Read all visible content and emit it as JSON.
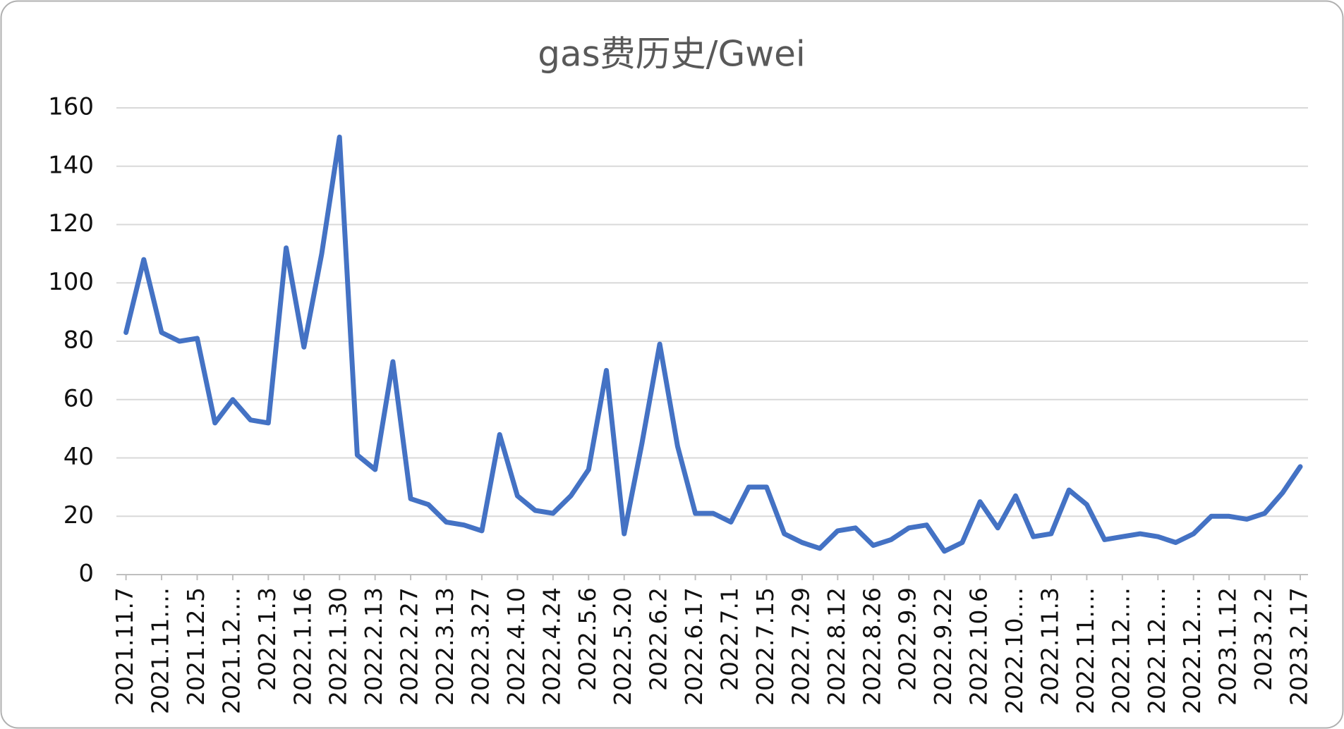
{
  "chart_data": {
    "type": "line",
    "title": "gas费历史/Gwei",
    "categories": [
      "2021.11.7",
      null,
      "2021.11.…",
      null,
      "2021.12.5",
      null,
      "2021.12.…",
      null,
      "2022.1.3",
      null,
      "2022.1.16",
      null,
      "2022.1.30",
      null,
      "2022.2.13",
      null,
      "2022.2.27",
      null,
      "2022.3.13",
      null,
      "2022.3.27",
      null,
      "2022.4.10",
      null,
      "2022.4.24",
      null,
      "2022.5.6",
      null,
      "2022.5.20",
      null,
      "2022.6.2",
      null,
      "2022.6.17",
      null,
      "2022.7.1",
      null,
      "2022.7.15",
      null,
      "2022.7.29",
      null,
      "2022.8.12",
      null,
      "2022.8.26",
      null,
      "2022.9.9",
      null,
      "2022.9.22",
      null,
      "2022.10.6",
      null,
      "2022.10.…",
      null,
      "2022.11.3",
      null,
      "2022.11.…",
      null,
      "2022.12.…",
      null,
      "2022.12.…",
      null,
      "2022.12.…",
      null,
      "2023.1.12",
      null,
      "2023.2.2",
      null,
      "2023.2.17"
    ],
    "series": [
      {
        "name": "gas",
        "color": "#4472c4",
        "values": [
          83,
          108,
          83,
          80,
          81,
          52,
          60,
          53,
          52,
          112,
          78,
          110,
          150,
          41,
          36,
          73,
          26,
          24,
          18,
          17,
          15,
          48,
          27,
          22,
          21,
          27,
          36,
          70,
          14,
          45,
          79,
          44,
          21,
          21,
          18,
          30,
          30,
          14,
          11,
          9,
          15,
          16,
          10,
          12,
          16,
          17,
          8,
          11,
          25,
          16,
          27,
          13,
          14,
          29,
          24,
          12,
          13,
          14,
          13,
          11,
          14,
          20,
          20,
          19,
          21,
          28,
          37
        ]
      }
    ],
    "ylim": [
      0,
      160
    ],
    "yticks": [
      0,
      20,
      40,
      60,
      80,
      100,
      120,
      140,
      160
    ],
    "grid": true
  }
}
